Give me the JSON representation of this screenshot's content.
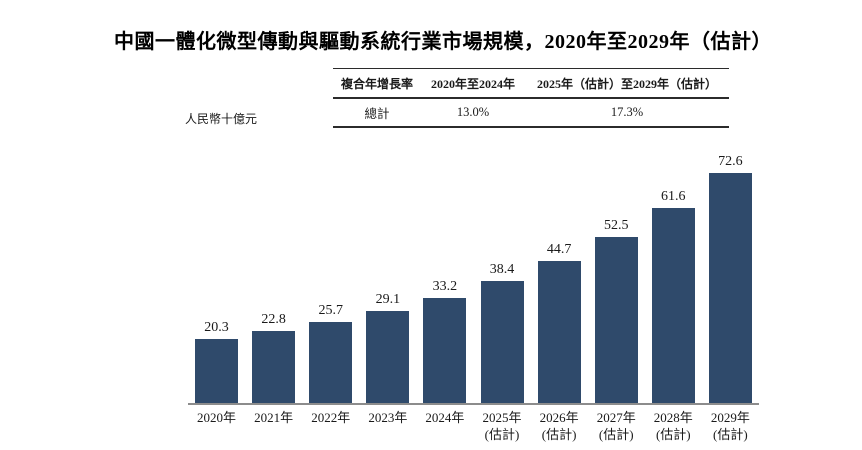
{
  "title": "中國一體化微型傳動與驅動系統行業市場規模，2020年至2029年（估計）",
  "unit_label": "人民幣十億元",
  "cagr_table": {
    "headers": [
      "複合年增長率",
      "2020年至2024年",
      "2025年（估計）至2029年（估計）"
    ],
    "rows": [
      [
        "總計",
        "13.0%",
        "17.3%"
      ]
    ]
  },
  "chart_data": {
    "type": "bar",
    "title": "中國一體化微型傳動與驅動系統行業市場規模，2020年至2029年（估計）",
    "ylabel": "人民幣十億元",
    "categories": [
      "2020年",
      "2021年",
      "2022年",
      "2023年",
      "2024年",
      "2025年",
      "2026年",
      "2027年",
      "2028年",
      "2029年"
    ],
    "category_notes": [
      "",
      "",
      "",
      "",
      "",
      "(估計)",
      "(估計)",
      "(估計)",
      "(估計)",
      "(估計)"
    ],
    "values": [
      20.3,
      22.8,
      25.7,
      29.1,
      33.2,
      38.4,
      44.7,
      52.5,
      61.6,
      72.6
    ],
    "value_labels": [
      "20.3",
      "22.8",
      "25.7",
      "29.1",
      "33.2",
      "38.4",
      "44.7",
      "52.5",
      "61.6",
      "72.6"
    ],
    "ylim": [
      0,
      72.6
    ],
    "grid": false,
    "legend": "none",
    "bar_color": "#2f4a6b",
    "axis_color": "#8c8c8c"
  }
}
